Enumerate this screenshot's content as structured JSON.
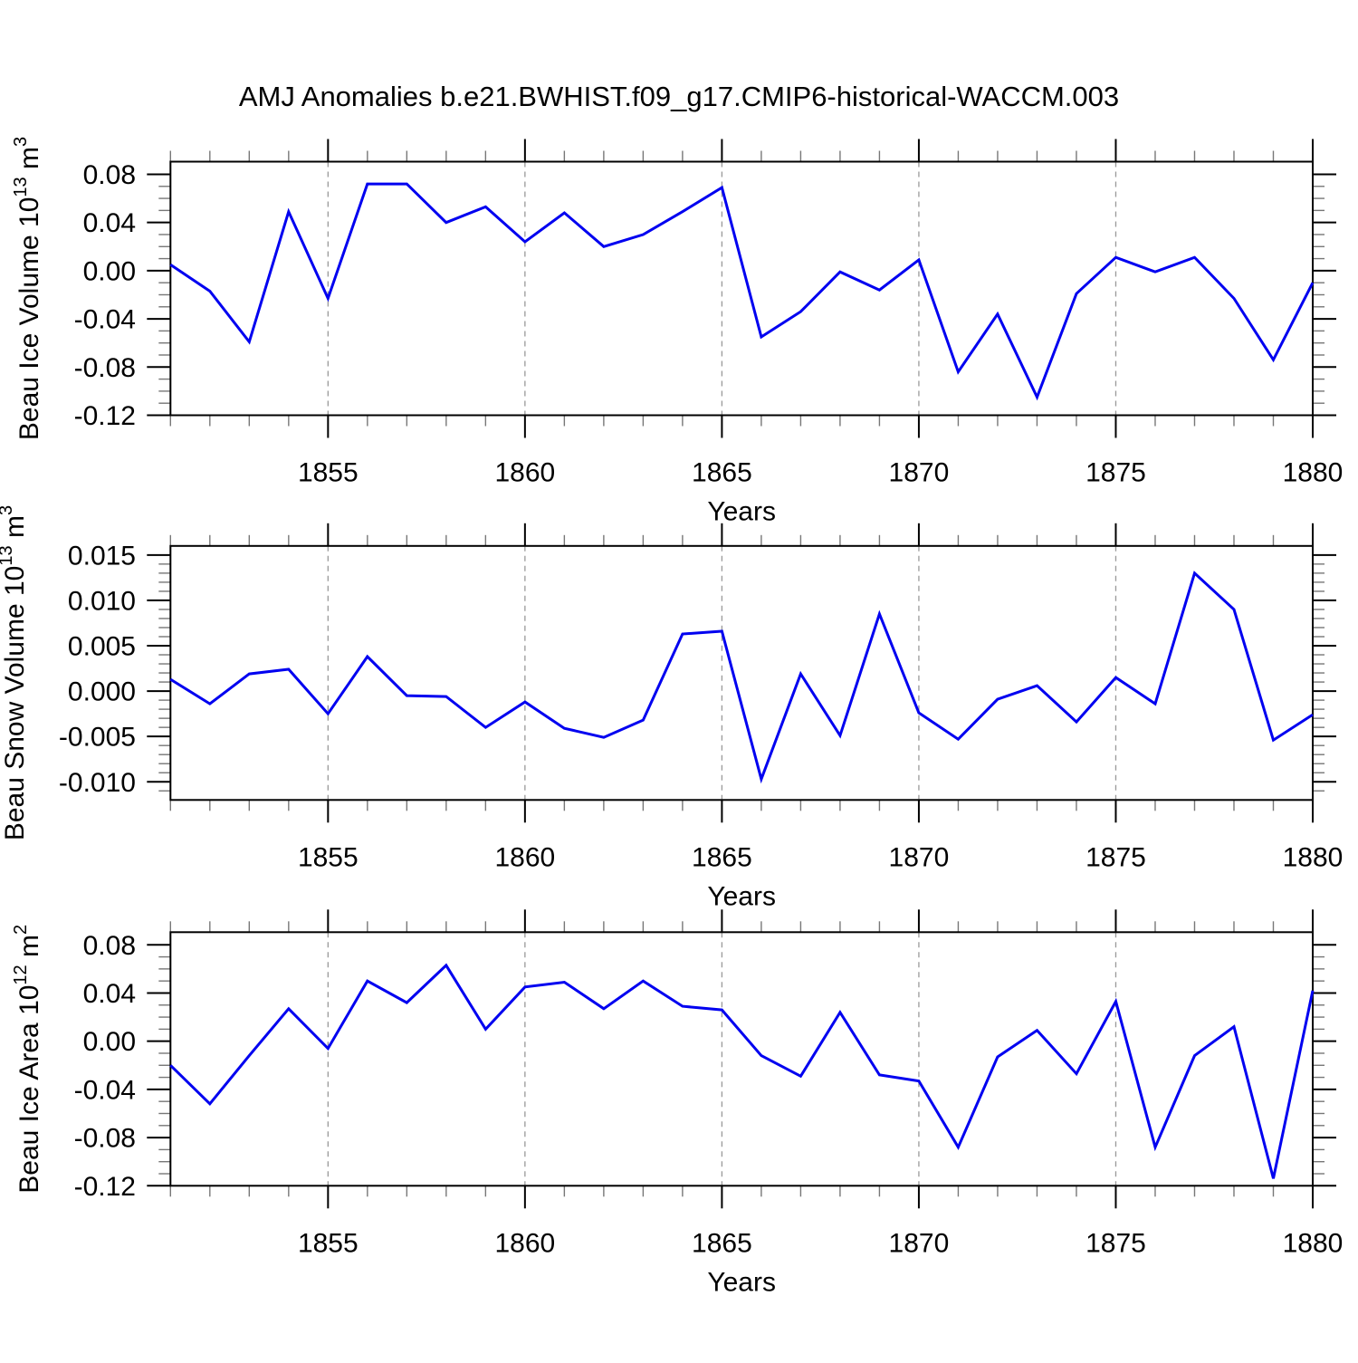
{
  "title": "AMJ Anomalies b.e21.BWHIST.f09_g17.CMIP6-historical-WACCM.003",
  "style": {
    "line_color": "#0000f0",
    "grid_color": "#999999",
    "axis_color": "#000000",
    "minor_tick_color": "#777777",
    "background": "#ffffff"
  },
  "chart_data": [
    {
      "type": "line",
      "id": "ice-volume",
      "ylabel_text": "Beau Ice Volume 10^13 m^3",
      "ylabel_parts": [
        {
          "t": "Beau Ice Volume 10"
        },
        {
          "t": "13",
          "sup": true
        },
        {
          "t": " m"
        },
        {
          "t": "3",
          "sup": true
        }
      ],
      "xlabel": "Years",
      "x": [
        1851,
        1852,
        1853,
        1854,
        1855,
        1856,
        1857,
        1858,
        1859,
        1860,
        1861,
        1862,
        1863,
        1864,
        1865,
        1866,
        1867,
        1868,
        1869,
        1870,
        1871,
        1872,
        1873,
        1874,
        1875,
        1876,
        1877,
        1878,
        1879,
        1880
      ],
      "values": [
        0.005,
        -0.017,
        -0.059,
        0.049,
        -0.023,
        0.072,
        0.072,
        0.04,
        0.053,
        0.024,
        0.048,
        0.02,
        0.03,
        0.049,
        0.069,
        -0.055,
        -0.034,
        -0.001,
        -0.016,
        0.009,
        -0.084,
        -0.036,
        -0.105,
        -0.019,
        0.011,
        -0.001,
        0.011,
        -0.023,
        -0.074,
        -0.01
      ],
      "xlim": [
        1851,
        1880
      ],
      "ylim": [
        -0.12,
        0.0905
      ],
      "yticks": [
        0.08,
        0.04,
        0.0,
        -0.04,
        -0.08,
        -0.12
      ],
      "ytick_labels": [
        "0.08",
        "0.04",
        "0.00",
        "-0.04",
        "-0.08",
        "-0.12"
      ],
      "yminor_step": 0.01,
      "xticks": [
        1855,
        1860,
        1865,
        1870,
        1875,
        1880
      ],
      "xtick_labels": [
        "1855",
        "1860",
        "1865",
        "1870",
        "1875",
        "1880"
      ],
      "xminor_step": 1,
      "grid_years": [
        1855,
        1860,
        1865,
        1870,
        1875
      ],
      "grid": "vertical-dashed"
    },
    {
      "type": "line",
      "id": "snow-volume",
      "ylabel_text": "Beau Snow Volume 10^13 m^3",
      "ylabel_parts": [
        {
          "t": "Beau Snow Volume 10"
        },
        {
          "t": "13",
          "sup": true
        },
        {
          "t": " m"
        },
        {
          "t": "3",
          "sup": true
        }
      ],
      "xlabel": "Years",
      "x": [
        1851,
        1852,
        1853,
        1854,
        1855,
        1856,
        1857,
        1858,
        1859,
        1860,
        1861,
        1862,
        1863,
        1864,
        1865,
        1866,
        1867,
        1868,
        1869,
        1870,
        1871,
        1872,
        1873,
        1874,
        1875,
        1876,
        1877,
        1878,
        1879,
        1880
      ],
      "values": [
        0.0013,
        -0.0014,
        0.0019,
        0.0024,
        -0.0025,
        0.0038,
        -0.0005,
        -0.0006,
        -0.004,
        -0.0012,
        -0.0041,
        -0.0051,
        -0.0032,
        0.0063,
        0.0066,
        -0.0097,
        0.0019,
        -0.0049,
        0.0085,
        -0.0024,
        -0.0053,
        -0.0009,
        0.0006,
        -0.0034,
        0.0015,
        -0.0014,
        0.013,
        0.009,
        -0.0054,
        -0.0026
      ],
      "xlim": [
        1851,
        1880
      ],
      "ylim": [
        -0.012,
        0.016
      ],
      "yticks": [
        0.015,
        0.01,
        0.005,
        0.0,
        -0.005,
        -0.01
      ],
      "ytick_labels": [
        "0.015",
        "0.010",
        "0.005",
        "0.000",
        "-0.005",
        "-0.010"
      ],
      "yminor_step": 0.001,
      "xticks": [
        1855,
        1860,
        1865,
        1870,
        1875,
        1880
      ],
      "xtick_labels": [
        "1855",
        "1860",
        "1865",
        "1870",
        "1875",
        "1880"
      ],
      "xminor_step": 1,
      "grid_years": [
        1855,
        1860,
        1865,
        1870,
        1875
      ],
      "grid": "vertical-dashed"
    },
    {
      "type": "line",
      "id": "ice-area",
      "ylabel_text": "Beau Ice Area 10^12 m^2",
      "ylabel_parts": [
        {
          "t": "Beau Ice Area 10"
        },
        {
          "t": "12",
          "sup": true
        },
        {
          "t": " m"
        },
        {
          "t": "2",
          "sup": true
        }
      ],
      "xlabel": "Years",
      "x": [
        1851,
        1852,
        1853,
        1854,
        1855,
        1856,
        1857,
        1858,
        1859,
        1860,
        1861,
        1862,
        1863,
        1864,
        1865,
        1866,
        1867,
        1868,
        1869,
        1870,
        1871,
        1872,
        1873,
        1874,
        1875,
        1876,
        1877,
        1878,
        1879,
        1880
      ],
      "values": [
        -0.02,
        -0.052,
        -0.012,
        0.027,
        -0.006,
        0.05,
        0.032,
        0.063,
        0.01,
        0.045,
        0.049,
        0.027,
        0.05,
        0.029,
        0.026,
        -0.012,
        -0.029,
        0.024,
        -0.028,
        -0.033,
        -0.088,
        -0.013,
        0.009,
        -0.027,
        0.033,
        -0.088,
        -0.012,
        0.012,
        -0.114,
        0.042
      ],
      "xlim": [
        1851,
        1880
      ],
      "ylim": [
        -0.12,
        0.0905
      ],
      "yticks": [
        0.08,
        0.04,
        0.0,
        -0.04,
        -0.08,
        -0.12
      ],
      "ytick_labels": [
        "0.08",
        "0.04",
        "0.00",
        "-0.04",
        "-0.08",
        "-0.12"
      ],
      "yminor_step": 0.01,
      "xticks": [
        1855,
        1860,
        1865,
        1870,
        1875,
        1880
      ],
      "xtick_labels": [
        "1855",
        "1860",
        "1865",
        "1870",
        "1875",
        "1880"
      ],
      "xminor_step": 1,
      "grid_years": [
        1855,
        1860,
        1865,
        1870,
        1875
      ],
      "grid": "vertical-dashed"
    }
  ]
}
